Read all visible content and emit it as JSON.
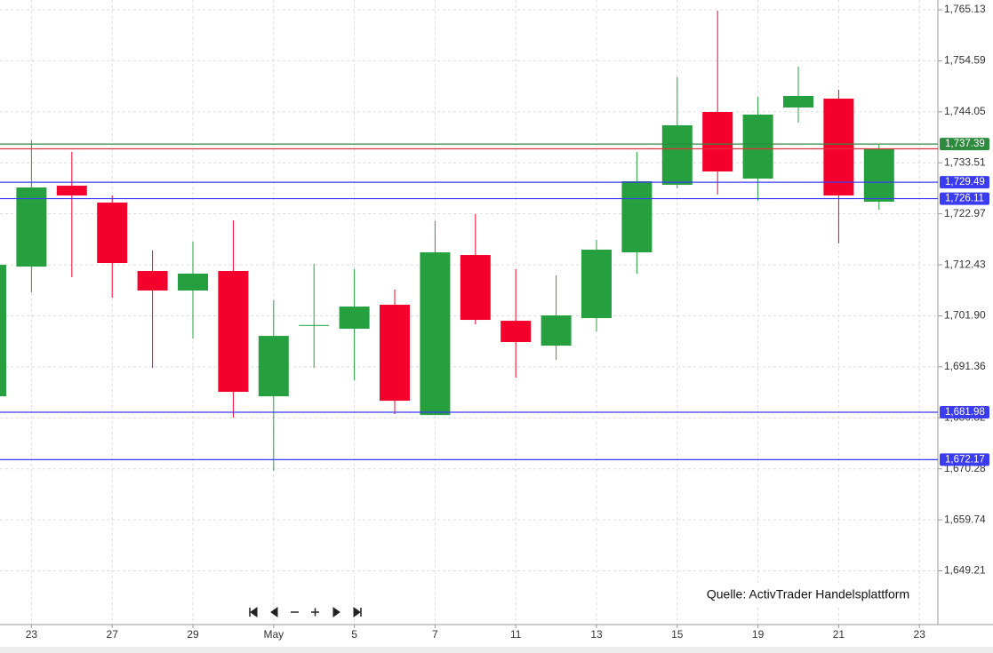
{
  "chart_data": {
    "type": "candlestick",
    "categories": [
      null,
      "23",
      null,
      "27",
      null,
      "29",
      null,
      "May",
      null,
      "5",
      null,
      "7",
      null,
      "11",
      null,
      "13",
      null,
      "15",
      null,
      "19",
      null,
      "21",
      null,
      "23"
    ],
    "open": [
      1685.27,
      1712.07,
      1728.78,
      1725.29,
      1711.16,
      1707.12,
      1711.16,
      1685.27,
      1699.9,
      1699.22,
      1704.18,
      1681.4,
      1714.46,
      1700.87,
      1695.73,
      1701.42,
      1715.01,
      1728.96,
      1744.02,
      1730.25,
      1744.94,
      1746.77,
      1725.48,
      null
    ],
    "high": [
      1712.44,
      1738.14,
      1735.76,
      1726.76,
      1715.38,
      1717.21,
      1721.62,
      1705.1,
      1712.62,
      1711.53,
      1707.3,
      1721.44,
      1722.9,
      1711.53,
      1710.24,
      1717.58,
      1735.76,
      1751.18,
      1764.95,
      1747.14,
      1753.38,
      1748.61,
      1737.22,
      null
    ],
    "low": [
      1685.27,
      1706.75,
      1709.87,
      1705.65,
      1691.14,
      1697.2,
      1680.86,
      1669.85,
      1691.14,
      1688.57,
      1681.6,
      1681.4,
      1700.14,
      1689.13,
      1692.8,
      1698.67,
      1710.61,
      1728.23,
      1726.94,
      1725.66,
      1741.81,
      1716.85,
      1723.82,
      null
    ],
    "close": [
      1712.44,
      1728.41,
      1726.76,
      1712.81,
      1707.12,
      1710.61,
      1686.19,
      1697.75,
      1700.0,
      1703.81,
      1684.35,
      1715.01,
      1701.06,
      1696.47,
      1701.98,
      1715.56,
      1729.7,
      1741.26,
      1731.72,
      1743.47,
      1747.32,
      1726.76,
      1736.31,
      null
    ],
    "up_color": "#26a03f",
    "down_color": "#f5002d",
    "ylim": [
      1638.1,
      1767.15
    ],
    "yticks": [
      {
        "value": 1649.21,
        "label": "1,649.21"
      },
      {
        "value": 1659.74,
        "label": "1,659.74"
      },
      {
        "value": 1670.28,
        "label": "1,670.28"
      },
      {
        "value": 1680.82,
        "label": "1,680.82"
      },
      {
        "value": 1691.36,
        "label": "1,691.36"
      },
      {
        "value": 1701.9,
        "label": "1,701.90"
      },
      {
        "value": 1712.43,
        "label": "1,712.43"
      },
      {
        "value": 1722.97,
        "label": "1,722.97"
      },
      {
        "value": 1733.51,
        "label": "1,733.51"
      },
      {
        "value": 1744.05,
        "label": "1,744.05"
      },
      {
        "value": 1754.59,
        "label": "1,754.59"
      },
      {
        "value": 1765.13,
        "label": "1,765.13"
      }
    ],
    "grid": true,
    "levels": [
      {
        "value": 1737.39,
        "label": "1,737.39",
        "color": "#2e8b3e"
      },
      {
        "value": 1736.4,
        "color": "#e0303a"
      },
      {
        "value": 1729.49,
        "label": "1,729.49",
        "color": "#3b3bf0"
      },
      {
        "value": 1726.11,
        "label": "1,726.11",
        "color": "#3b3bf0"
      },
      {
        "value": 1681.98,
        "label": "1,681.98",
        "color": "#3b3bf0"
      },
      {
        "value": 1672.17,
        "label": "1,672.17",
        "color": "#3b3bf0"
      }
    ],
    "annotation": "Quelle: ActivTrader Handelsplattform"
  }
}
